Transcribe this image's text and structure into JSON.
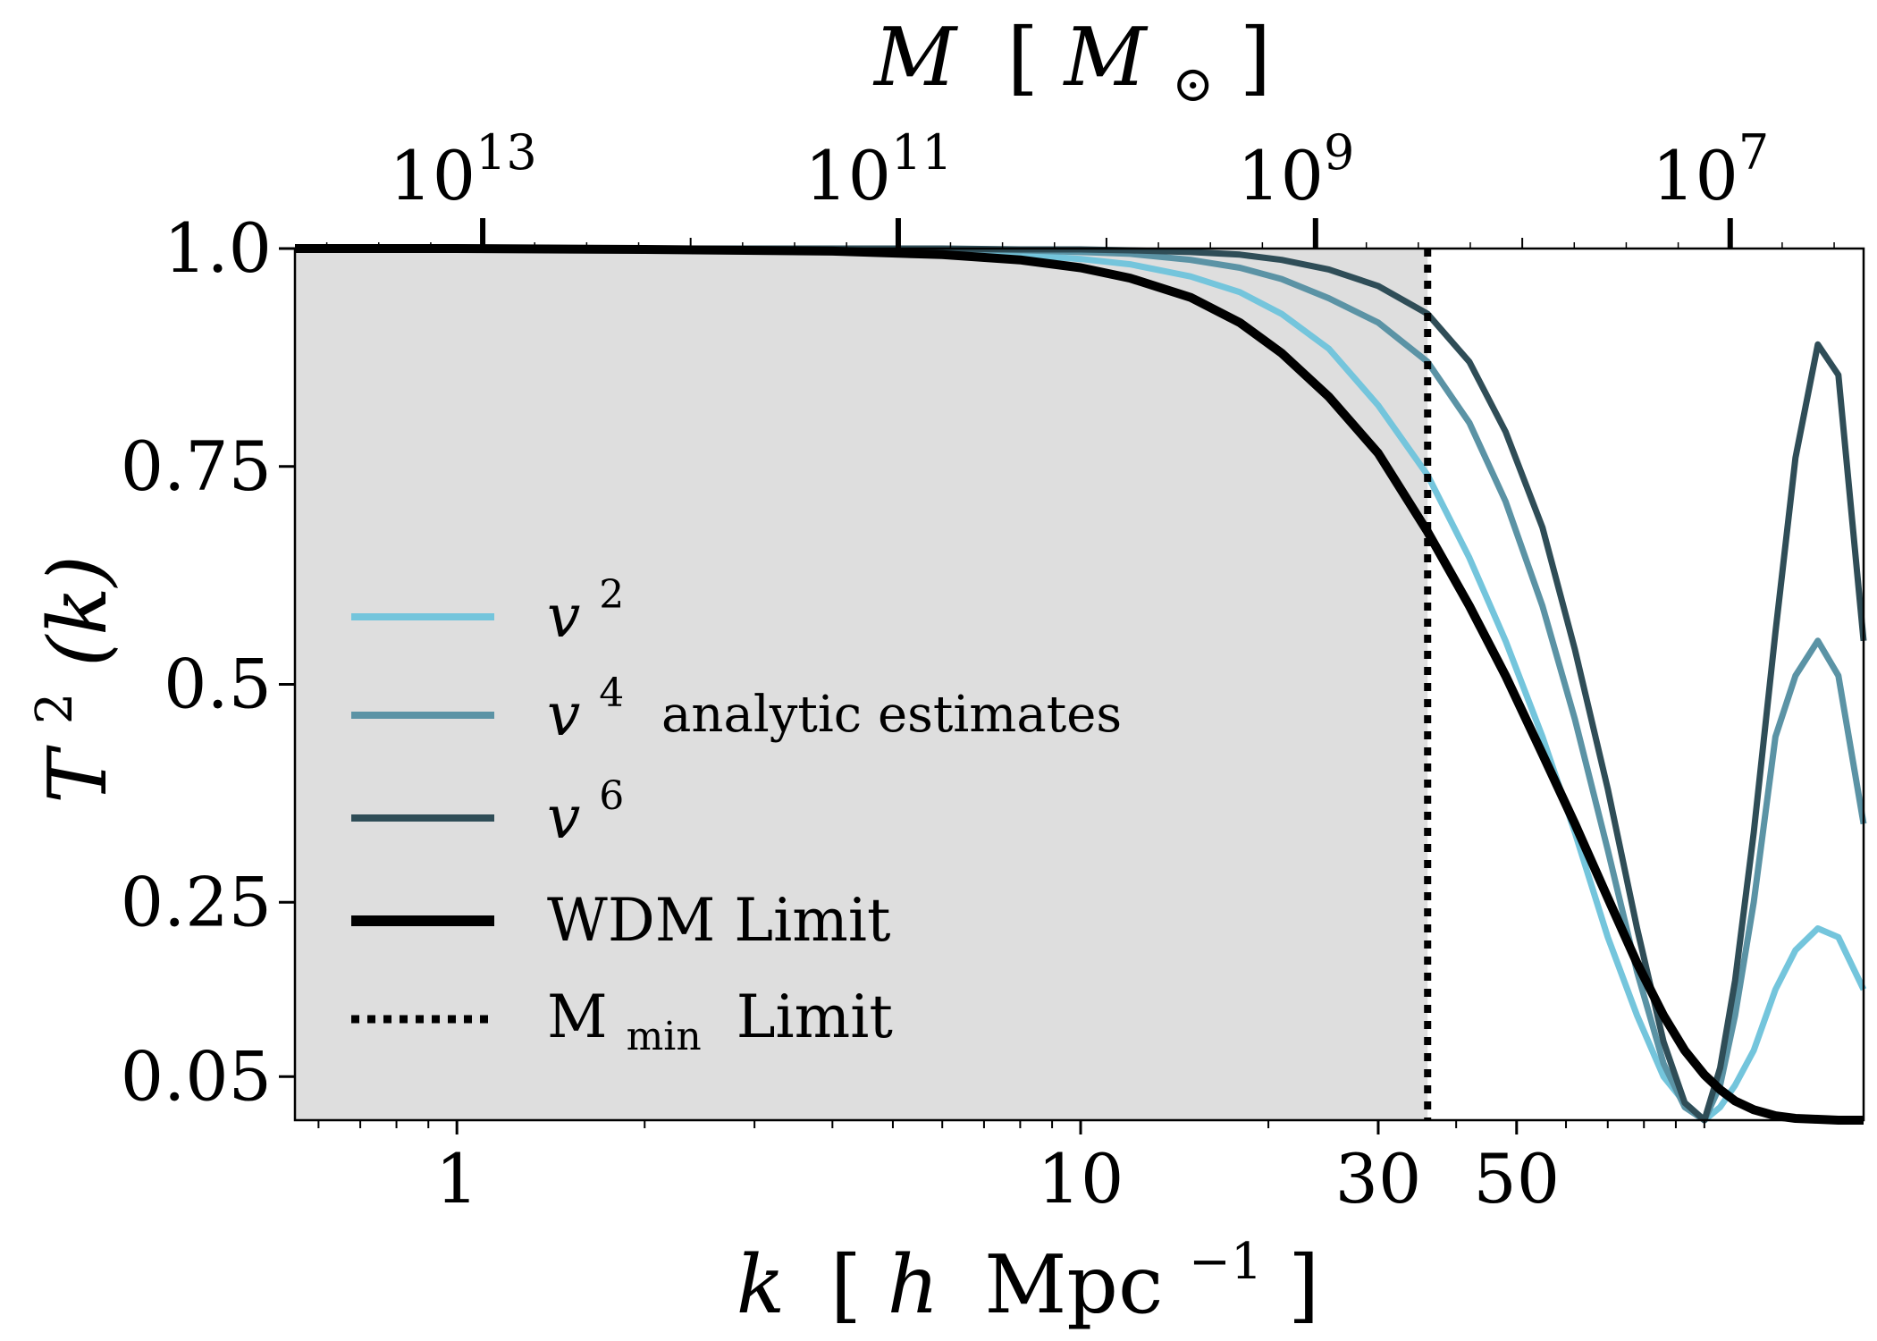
{
  "chart_data": {
    "type": "line",
    "title": "",
    "xlabel": "k [h Mpc^-1]",
    "xlabel_parts": {
      "var": "k",
      "open": "[",
      "h": "h",
      "unit": "Mpc",
      "sup": "−1",
      "close": "]"
    },
    "ylabel": "T^2(k)",
    "ylabel_parts": {
      "base": "T",
      "sup": "2",
      "arg": "(k)"
    },
    "top_xlabel": "M [M_⊙]",
    "top_xlabel_parts": {
      "var": "M",
      "open": "[",
      "sym": "M",
      "sub": "⊙",
      "close": "]"
    },
    "xscale": "log",
    "xlim": [
      0.55,
      180
    ],
    "ylim": [
      0.0,
      1.0
    ],
    "y_ticks": [
      {
        "value": 1.0,
        "label": "1.0"
      },
      {
        "value": 0.75,
        "label": "0.75"
      },
      {
        "value": 0.5,
        "label": "0.5"
      },
      {
        "value": 0.25,
        "label": "0.25"
      },
      {
        "value": 0.05,
        "label": "0.05"
      }
    ],
    "x_ticks": [
      {
        "value": 1,
        "label": "1"
      },
      {
        "value": 10,
        "label": "10"
      },
      {
        "value": 30,
        "label": "30"
      },
      {
        "value": 50,
        "label": "50"
      }
    ],
    "top_x_ticks": [
      {
        "value": 1.1,
        "base": "10",
        "exp": "13"
      },
      {
        "value": 5.1,
        "base": "10",
        "exp": "11"
      },
      {
        "value": 23.8,
        "base": "10",
        "exp": "9"
      },
      {
        "value": 110,
        "base": "10",
        "exp": "7"
      }
    ],
    "shaded_region": {
      "x_from": 0.55,
      "x_to": 36,
      "color": "#dedede"
    },
    "vline": {
      "x": 36,
      "style": "dotted",
      "label": "M_min Limit"
    },
    "series": [
      {
        "name": "v^2",
        "color": "#74c5dc",
        "x": [
          0.55,
          1,
          2,
          4,
          6,
          8,
          10,
          12,
          15,
          18,
          21,
          25,
          30,
          36,
          42,
          48,
          55,
          62,
          70,
          78,
          86,
          93,
          100,
          106,
          112,
          120,
          130,
          140,
          152,
          164,
          180
        ],
        "y": [
          1.0,
          1.0,
          1.0,
          0.999,
          0.997,
          0.993,
          0.988,
          0.982,
          0.968,
          0.95,
          0.925,
          0.885,
          0.82,
          0.74,
          0.645,
          0.55,
          0.44,
          0.33,
          0.21,
          0.12,
          0.05,
          0.02,
          0.0,
          0.015,
          0.04,
          0.08,
          0.15,
          0.195,
          0.22,
          0.21,
          0.15
        ]
      },
      {
        "name": "v^4",
        "color": "#5b93a5",
        "x": [
          0.55,
          1,
          2,
          4,
          6,
          8,
          10,
          12,
          15,
          18,
          21,
          25,
          30,
          36,
          42,
          48,
          55,
          62,
          70,
          78,
          86,
          93,
          100,
          106,
          112,
          120,
          130,
          140,
          152,
          164,
          180
        ],
        "y": [
          1.0,
          1.0,
          1.0,
          1.0,
          0.999,
          0.998,
          0.996,
          0.994,
          0.987,
          0.978,
          0.965,
          0.943,
          0.915,
          0.87,
          0.8,
          0.71,
          0.59,
          0.46,
          0.31,
          0.17,
          0.065,
          0.015,
          0.0,
          0.04,
          0.12,
          0.25,
          0.44,
          0.51,
          0.55,
          0.51,
          0.34
        ]
      },
      {
        "name": "v^6",
        "color": "#2f4d57",
        "x": [
          0.55,
          1,
          2,
          4,
          6,
          8,
          10,
          12,
          15,
          18,
          21,
          25,
          30,
          36,
          42,
          48,
          55,
          62,
          70,
          78,
          86,
          93,
          100,
          106,
          112,
          120,
          130,
          140,
          152,
          164,
          180
        ],
        "y": [
          1.0,
          1.0,
          1.0,
          1.0,
          1.0,
          0.999,
          0.999,
          0.998,
          0.996,
          0.993,
          0.987,
          0.976,
          0.957,
          0.925,
          0.87,
          0.79,
          0.68,
          0.54,
          0.38,
          0.22,
          0.09,
          0.02,
          0.0,
          0.06,
          0.16,
          0.33,
          0.56,
          0.76,
          0.89,
          0.855,
          0.55
        ]
      },
      {
        "name": "WDM Limit",
        "color": "#000000",
        "x": [
          0.55,
          1,
          2,
          4,
          6,
          8,
          10,
          12,
          15,
          18,
          21,
          25,
          30,
          36,
          42,
          48,
          55,
          62,
          70,
          78,
          86,
          93,
          100,
          106,
          112,
          120,
          130,
          140,
          152,
          164,
          180
        ],
        "y": [
          1.0,
          1.0,
          0.999,
          0.997,
          0.993,
          0.987,
          0.978,
          0.966,
          0.944,
          0.915,
          0.88,
          0.83,
          0.765,
          0.675,
          0.59,
          0.51,
          0.42,
          0.34,
          0.255,
          0.18,
          0.12,
          0.08,
          0.052,
          0.035,
          0.022,
          0.012,
          0.005,
          0.002,
          0.001,
          0.0,
          0.0
        ]
      }
    ],
    "legend": {
      "placement": "center-left",
      "entries": [
        {
          "label_base": "v",
          "label_sup": "2",
          "color": "#74c5dc",
          "style": "solid"
        },
        {
          "label_base": "v",
          "label_sup": "4",
          "color": "#5b93a5",
          "style": "solid",
          "note": "analytic estimates"
        },
        {
          "label_base": "v",
          "label_sup": "6",
          "color": "#2f4d57",
          "style": "solid"
        },
        {
          "label": "WDM Limit",
          "color": "#000000",
          "style": "solid-thick"
        },
        {
          "label_base": "M",
          "label_sub": "min",
          "label_rest": "Limit",
          "color": "#000000",
          "style": "dotted"
        }
      ]
    },
    "grid": false
  }
}
